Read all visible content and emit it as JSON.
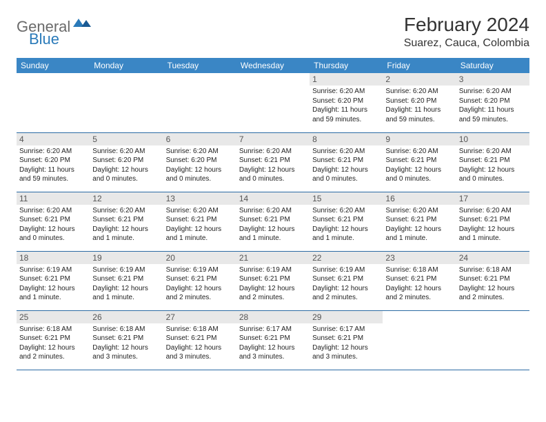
{
  "logo": {
    "word1": "General",
    "word2": "Blue"
  },
  "title": "February 2024",
  "location": "Suarez, Cauca, Colombia",
  "style": {
    "header_bg": "#3a86c5",
    "header_fg": "#ffffff",
    "daynum_bg": "#e8e8e8",
    "row_border": "#2a6aa3",
    "page_bg": "#ffffff",
    "text_color": "#222222",
    "title_fontsize": 28,
    "location_fontsize": 16,
    "header_fontsize": 12,
    "body_fontsize": 10
  },
  "weekdays": [
    "Sunday",
    "Monday",
    "Tuesday",
    "Wednesday",
    "Thursday",
    "Friday",
    "Saturday"
  ],
  "grid": [
    [
      null,
      null,
      null,
      null,
      {
        "n": "1",
        "sr": "Sunrise: 6:20 AM",
        "ss": "Sunset: 6:20 PM",
        "dl": "Daylight: 11 hours and 59 minutes."
      },
      {
        "n": "2",
        "sr": "Sunrise: 6:20 AM",
        "ss": "Sunset: 6:20 PM",
        "dl": "Daylight: 11 hours and 59 minutes."
      },
      {
        "n": "3",
        "sr": "Sunrise: 6:20 AM",
        "ss": "Sunset: 6:20 PM",
        "dl": "Daylight: 11 hours and 59 minutes."
      }
    ],
    [
      {
        "n": "4",
        "sr": "Sunrise: 6:20 AM",
        "ss": "Sunset: 6:20 PM",
        "dl": "Daylight: 11 hours and 59 minutes."
      },
      {
        "n": "5",
        "sr": "Sunrise: 6:20 AM",
        "ss": "Sunset: 6:20 PM",
        "dl": "Daylight: 12 hours and 0 minutes."
      },
      {
        "n": "6",
        "sr": "Sunrise: 6:20 AM",
        "ss": "Sunset: 6:20 PM",
        "dl": "Daylight: 12 hours and 0 minutes."
      },
      {
        "n": "7",
        "sr": "Sunrise: 6:20 AM",
        "ss": "Sunset: 6:21 PM",
        "dl": "Daylight: 12 hours and 0 minutes."
      },
      {
        "n": "8",
        "sr": "Sunrise: 6:20 AM",
        "ss": "Sunset: 6:21 PM",
        "dl": "Daylight: 12 hours and 0 minutes."
      },
      {
        "n": "9",
        "sr": "Sunrise: 6:20 AM",
        "ss": "Sunset: 6:21 PM",
        "dl": "Daylight: 12 hours and 0 minutes."
      },
      {
        "n": "10",
        "sr": "Sunrise: 6:20 AM",
        "ss": "Sunset: 6:21 PM",
        "dl": "Daylight: 12 hours and 0 minutes."
      }
    ],
    [
      {
        "n": "11",
        "sr": "Sunrise: 6:20 AM",
        "ss": "Sunset: 6:21 PM",
        "dl": "Daylight: 12 hours and 0 minutes."
      },
      {
        "n": "12",
        "sr": "Sunrise: 6:20 AM",
        "ss": "Sunset: 6:21 PM",
        "dl": "Daylight: 12 hours and 1 minute."
      },
      {
        "n": "13",
        "sr": "Sunrise: 6:20 AM",
        "ss": "Sunset: 6:21 PM",
        "dl": "Daylight: 12 hours and 1 minute."
      },
      {
        "n": "14",
        "sr": "Sunrise: 6:20 AM",
        "ss": "Sunset: 6:21 PM",
        "dl": "Daylight: 12 hours and 1 minute."
      },
      {
        "n": "15",
        "sr": "Sunrise: 6:20 AM",
        "ss": "Sunset: 6:21 PM",
        "dl": "Daylight: 12 hours and 1 minute."
      },
      {
        "n": "16",
        "sr": "Sunrise: 6:20 AM",
        "ss": "Sunset: 6:21 PM",
        "dl": "Daylight: 12 hours and 1 minute."
      },
      {
        "n": "17",
        "sr": "Sunrise: 6:20 AM",
        "ss": "Sunset: 6:21 PM",
        "dl": "Daylight: 12 hours and 1 minute."
      }
    ],
    [
      {
        "n": "18",
        "sr": "Sunrise: 6:19 AM",
        "ss": "Sunset: 6:21 PM",
        "dl": "Daylight: 12 hours and 1 minute."
      },
      {
        "n": "19",
        "sr": "Sunrise: 6:19 AM",
        "ss": "Sunset: 6:21 PM",
        "dl": "Daylight: 12 hours and 1 minute."
      },
      {
        "n": "20",
        "sr": "Sunrise: 6:19 AM",
        "ss": "Sunset: 6:21 PM",
        "dl": "Daylight: 12 hours and 2 minutes."
      },
      {
        "n": "21",
        "sr": "Sunrise: 6:19 AM",
        "ss": "Sunset: 6:21 PM",
        "dl": "Daylight: 12 hours and 2 minutes."
      },
      {
        "n": "22",
        "sr": "Sunrise: 6:19 AM",
        "ss": "Sunset: 6:21 PM",
        "dl": "Daylight: 12 hours and 2 minutes."
      },
      {
        "n": "23",
        "sr": "Sunrise: 6:18 AM",
        "ss": "Sunset: 6:21 PM",
        "dl": "Daylight: 12 hours and 2 minutes."
      },
      {
        "n": "24",
        "sr": "Sunrise: 6:18 AM",
        "ss": "Sunset: 6:21 PM",
        "dl": "Daylight: 12 hours and 2 minutes."
      }
    ],
    [
      {
        "n": "25",
        "sr": "Sunrise: 6:18 AM",
        "ss": "Sunset: 6:21 PM",
        "dl": "Daylight: 12 hours and 2 minutes."
      },
      {
        "n": "26",
        "sr": "Sunrise: 6:18 AM",
        "ss": "Sunset: 6:21 PM",
        "dl": "Daylight: 12 hours and 3 minutes."
      },
      {
        "n": "27",
        "sr": "Sunrise: 6:18 AM",
        "ss": "Sunset: 6:21 PM",
        "dl": "Daylight: 12 hours and 3 minutes."
      },
      {
        "n": "28",
        "sr": "Sunrise: 6:17 AM",
        "ss": "Sunset: 6:21 PM",
        "dl": "Daylight: 12 hours and 3 minutes."
      },
      {
        "n": "29",
        "sr": "Sunrise: 6:17 AM",
        "ss": "Sunset: 6:21 PM",
        "dl": "Daylight: 12 hours and 3 minutes."
      },
      null,
      null
    ]
  ]
}
